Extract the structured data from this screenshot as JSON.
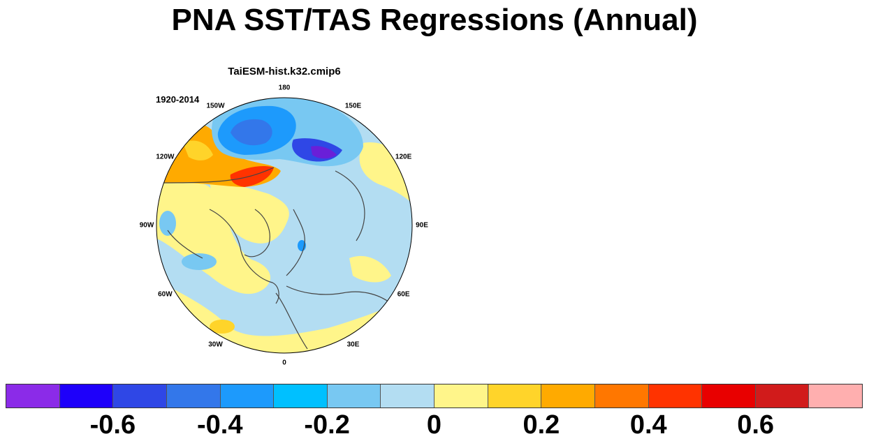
{
  "title": "PNA SST/TAS Regressions (Annual)",
  "panel": {
    "model": "TaiESM-hist.k32.cmip6",
    "period": "1920-2014",
    "longitude_labels": [
      "180",
      "150E",
      "120E",
      "90E",
      "60E",
      "30E",
      "0",
      "30W",
      "60W",
      "90W",
      "120W",
      "150W"
    ]
  },
  "colorbar": {
    "colors": [
      "#8b2be8",
      "#1e00fa",
      "#2f47e6",
      "#3377ea",
      "#1d9afc",
      "#00c0ff",
      "#78c8f2",
      "#b3ddf2",
      "#fff58a",
      "#ffd42a",
      "#ffaa00",
      "#ff7700",
      "#ff3300",
      "#e80000",
      "#d11b1b",
      "#ffafaf"
    ],
    "tick_labels": [
      "-0.6",
      "-0.4",
      "-0.2",
      "0",
      "0.2",
      "0.4",
      "0.6"
    ]
  }
}
